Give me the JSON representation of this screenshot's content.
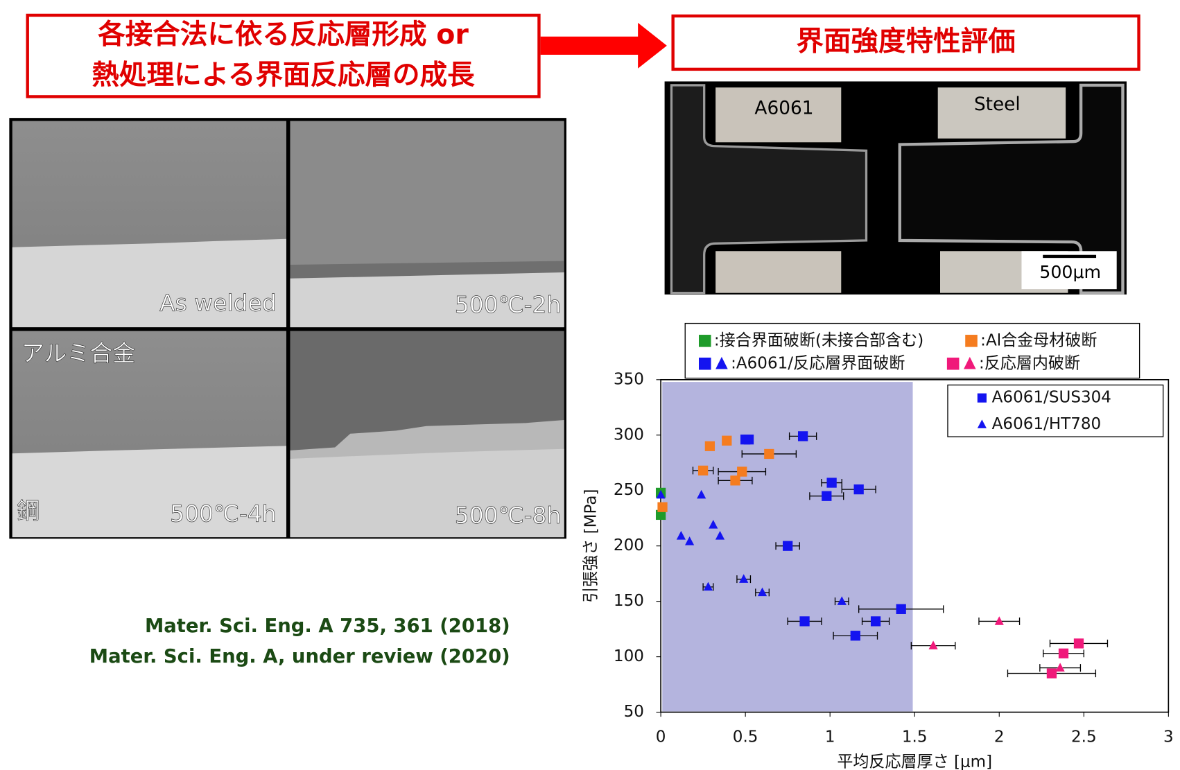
{
  "header": {
    "left": [
      "各接合法に依る反応層形成 or",
      "熱処理による界面反応層の成長"
    ],
    "right": "界面強度特性評価"
  },
  "micrographs": {
    "panels": [
      "As welded",
      "500℃-2h",
      "500℃-4h",
      "500℃-8h"
    ],
    "labels": [
      "アルミ合金",
      "鋼"
    ]
  },
  "photo": {
    "labels": [
      "A6061",
      "Steel"
    ],
    "scale": "500μm"
  },
  "citations": [
    "Mater. Sci. Eng. A 735, 361 (2018)",
    "Mater. Sci. Eng. A, under review (2020)"
  ],
  "chart_data": {
    "type": "scatter",
    "xlabel": "平均反応層厚さ [μm]",
    "ylabel": "引張強さ [MPa]",
    "xlim": [
      0,
      3
    ],
    "ylim": [
      50,
      350
    ],
    "xticks": [
      0,
      0.5,
      1,
      1.5,
      2,
      2.5,
      3
    ],
    "yticks": [
      50,
      100,
      150,
      200,
      250,
      300,
      350
    ],
    "shaded_region": [
      0,
      1.48
    ],
    "shade_color": "#b4b4de",
    "marker_legend": [
      {
        "name": "A6061/SUS304",
        "marker": "square"
      },
      {
        "name": "A6061/HT780",
        "marker": "triangle"
      }
    ],
    "marker_legend_color": "#1414f0",
    "series": [
      {
        "name": ":接合界面破断(未接合部含む)",
        "color": "#1e9b2a",
        "squares": {
          "x": [
            0,
            0
          ],
          "values": [
            248,
            228
          ],
          "xerr": [
            null,
            null
          ]
        },
        "triangles": {
          "x": [],
          "values": [],
          "xerr": []
        }
      },
      {
        "name": ":Al合金母材破断",
        "color": "#f57c1f",
        "squares": {
          "x": [
            0.01,
            0.29,
            0.39,
            0.64,
            0.25,
            0.48,
            0.44
          ],
          "values": [
            235,
            290,
            295,
            283,
            268,
            267,
            259
          ],
          "xerr": [
            null,
            null,
            null,
            0.16,
            0.06,
            0.14,
            0.1
          ]
        },
        "triangles": {
          "x": [],
          "values": [],
          "xerr": []
        }
      },
      {
        "name": ":A6061/反応層界面破断",
        "color": "#1414f0",
        "squares": {
          "x": [
            0.5,
            0.52,
            0.84,
            1.01,
            1.17,
            0.98,
            0.75,
            0.85,
            1.27,
            1.15,
            1.42
          ],
          "values": [
            296,
            296,
            299,
            257,
            251,
            245,
            200,
            132,
            132,
            119,
            143
          ],
          "xerr": [
            null,
            null,
            0.08,
            0.06,
            0.1,
            0.1,
            0.07,
            0.1,
            0.08,
            0.13,
            0.25
          ]
        },
        "triangles": {
          "x": [
            0,
            0.24,
            0.12,
            0.17,
            0.31,
            0.35,
            0.49,
            0.28,
            0.6,
            1.07
          ],
          "values": [
            246,
            246,
            209,
            204,
            219,
            209,
            170,
            163,
            158,
            150
          ],
          "xerr": [
            null,
            null,
            null,
            null,
            null,
            null,
            0.04,
            0.03,
            0.04,
            0.04
          ]
        }
      },
      {
        "name": ":反応層内破断",
        "color": "#f0197a",
        "squares": {
          "x": [
            2.47,
            2.38,
            2.31
          ],
          "values": [
            112,
            103,
            85
          ],
          "xerr": [
            0.17,
            0.12,
            0.26
          ]
        },
        "triangles": {
          "x": [
            1.61,
            2.0,
            2.36
          ],
          "values": [
            110,
            132,
            90
          ],
          "xerr": [
            0.13,
            0.12,
            0.12
          ]
        }
      }
    ]
  }
}
